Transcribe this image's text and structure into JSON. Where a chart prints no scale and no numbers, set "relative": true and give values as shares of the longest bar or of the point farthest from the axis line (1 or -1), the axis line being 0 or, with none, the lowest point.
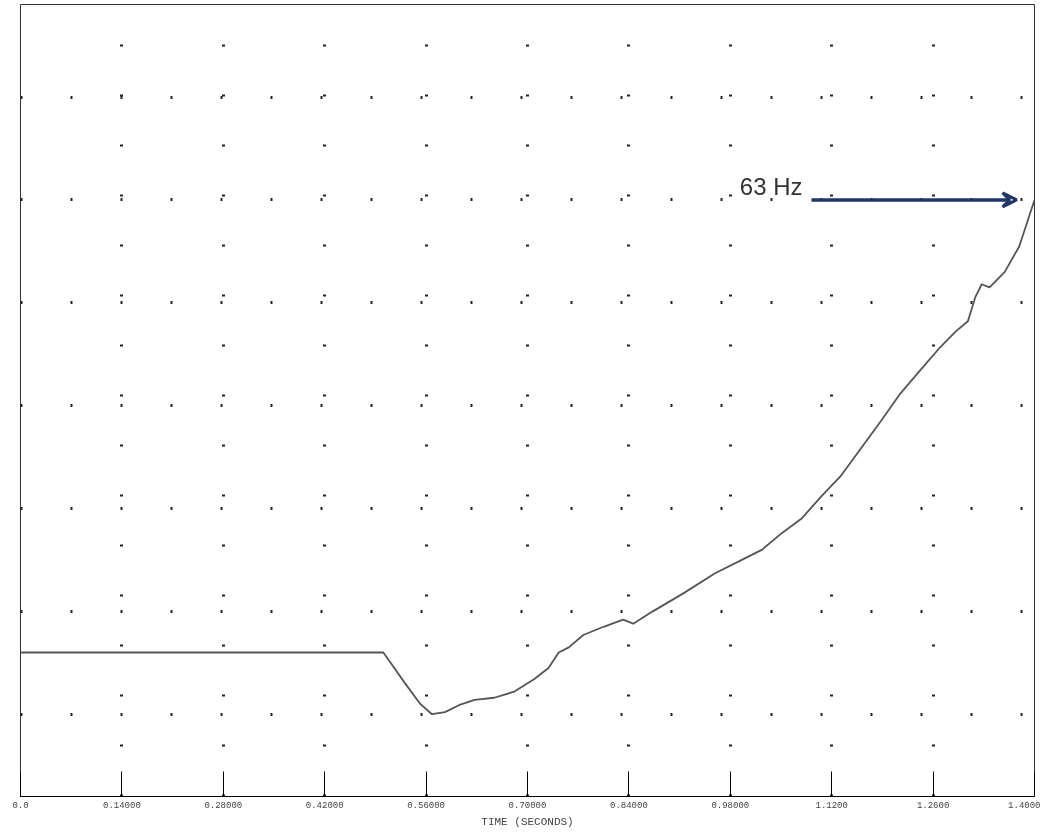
{
  "chart_data": {
    "type": "line",
    "xlabel": "TIME (SECONDS)",
    "relative": true,
    "grid": true,
    "color": "#555555",
    "xlim": [
      0,
      1.4
    ],
    "xticks": [
      {
        "value": 0,
        "label": "0.0"
      },
      {
        "value": 0.14,
        "label": "0.14000"
      },
      {
        "value": 0.28,
        "label": "0.28000"
      },
      {
        "value": 0.42,
        "label": "0.42000"
      },
      {
        "value": 0.56,
        "label": "0.56000"
      },
      {
        "value": 0.7,
        "label": "0.70000"
      },
      {
        "value": 0.84,
        "label": "0.84000"
      },
      {
        "value": 0.98,
        "label": "0.98000"
      },
      {
        "value": 1.12,
        "label": "1.1200"
      },
      {
        "value": 1.26,
        "label": "1.2600"
      },
      {
        "value": 1.4,
        "label": "1.4000"
      }
    ],
    "x": [
      0,
      0.253,
      0.501,
      0.511,
      0.531,
      0.552,
      0.568,
      0.586,
      0.606,
      0.627,
      0.654,
      0.682,
      0.709,
      0.729,
      0.743,
      0.757,
      0.777,
      0.805,
      0.832,
      0.846,
      0.873,
      0.914,
      0.959,
      0.996,
      1.024,
      1.051,
      1.078,
      1.106,
      1.133,
      1.16,
      1.188,
      1.215,
      1.243,
      1.27,
      1.291,
      1.308,
      1.318,
      1.327,
      1.338,
      1.359,
      1.379,
      1.4
    ],
    "values": [
      0.12,
      0.12,
      0.12,
      0.1,
      0.06,
      0.02,
      0,
      0.004,
      0.018,
      0.028,
      0.032,
      0.044,
      0.068,
      0.09,
      0.12,
      0.13,
      0.154,
      0.17,
      0.184,
      0.176,
      0.2,
      0.234,
      0.274,
      0.3,
      0.32,
      0.352,
      0.38,
      0.424,
      0.464,
      0.516,
      0.57,
      0.624,
      0.67,
      0.714,
      0.744,
      0.764,
      0.81,
      0.836,
      0.83,
      0.86,
      0.91,
      1
    ],
    "annotations": [
      "63 Hz"
    ]
  }
}
